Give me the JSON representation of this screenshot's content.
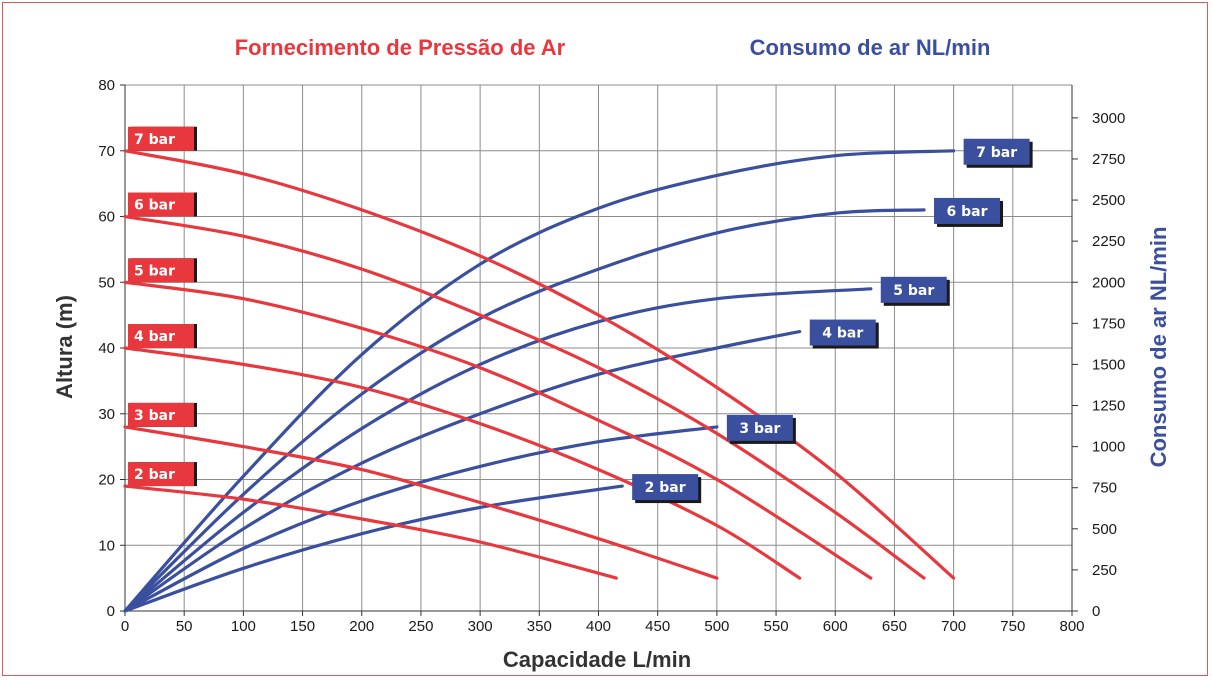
{
  "header": {
    "left_title": "Fornecimento de Pressão de Ar",
    "right_title": "Consumo de ar NL/min"
  },
  "colors": {
    "pressure": "#e8383d",
    "consumption": "#3a4f9e",
    "frame": "#e05a5a",
    "grid": "#8c8c8c"
  },
  "chart_data": {
    "type": "line",
    "xlabel": "Capacidade L/min",
    "ylabel": "Altura (m)",
    "y2label": "Consumo de ar NL/min",
    "xlim": [
      0,
      800
    ],
    "ylim": [
      0,
      80
    ],
    "y2lim": [
      0,
      3200
    ],
    "x_ticks": [
      0,
      50,
      100,
      150,
      200,
      250,
      300,
      350,
      400,
      450,
      500,
      550,
      600,
      650,
      700,
      750,
      800
    ],
    "y_ticks": [
      0,
      10,
      20,
      30,
      40,
      50,
      60,
      70,
      80
    ],
    "y2_ticks": [
      0,
      250,
      500,
      750,
      1000,
      1250,
      1500,
      1750,
      2000,
      2250,
      2500,
      2750,
      3000
    ],
    "grid": true,
    "pressure_series": [
      {
        "name": "7 bar",
        "x": [
          0,
          100,
          200,
          300,
          400,
          500,
          600,
          700
        ],
        "y": [
          70,
          66.5,
          61,
          54,
          45,
          34,
          21,
          5
        ]
      },
      {
        "name": "6 bar",
        "x": [
          0,
          100,
          200,
          300,
          400,
          500,
          600,
          675
        ],
        "y": [
          60,
          57,
          52,
          45,
          37,
          27,
          15,
          5
        ]
      },
      {
        "name": "5 bar",
        "x": [
          0,
          100,
          200,
          300,
          400,
          500,
          630
        ],
        "y": [
          50,
          47.5,
          43,
          37,
          29,
          20,
          5
        ]
      },
      {
        "name": "4 bar",
        "x": [
          0,
          100,
          200,
          300,
          400,
          500,
          570
        ],
        "y": [
          40,
          37.5,
          34,
          28.5,
          21.5,
          13,
          5
        ]
      },
      {
        "name": "3 bar",
        "x": [
          0,
          100,
          200,
          300,
          400,
          500
        ],
        "y": [
          28,
          25,
          21.5,
          16.5,
          11,
          5
        ]
      },
      {
        "name": "2 bar",
        "x": [
          0,
          100,
          200,
          300,
          415
        ],
        "y": [
          19,
          17,
          14,
          10.5,
          5
        ]
      }
    ],
    "consumption_series": [
      {
        "name": "7 bar",
        "x": [
          0,
          100,
          200,
          300,
          400,
          500,
          600,
          700
        ],
        "y": [
          0,
          820,
          1560,
          2110,
          2450,
          2650,
          2770,
          2800
        ]
      },
      {
        "name": "6 bar",
        "x": [
          0,
          100,
          200,
          300,
          400,
          500,
          600,
          675
        ],
        "y": [
          0,
          710,
          1320,
          1780,
          2080,
          2300,
          2420,
          2440
        ]
      },
      {
        "name": "5 bar",
        "x": [
          0,
          100,
          200,
          300,
          400,
          500,
          630
        ],
        "y": [
          0,
          600,
          1110,
          1500,
          1760,
          1900,
          1960
        ]
      },
      {
        "name": "4 bar",
        "x": [
          0,
          100,
          200,
          300,
          400,
          500,
          570
        ],
        "y": [
          0,
          500,
          900,
          1200,
          1440,
          1600,
          1700
        ]
      },
      {
        "name": "3 bar",
        "x": [
          0,
          100,
          200,
          300,
          400,
          500
        ],
        "y": [
          0,
          380,
          670,
          880,
          1030,
          1120
        ]
      },
      {
        "name": "2 bar",
        "x": [
          0,
          100,
          200,
          300,
          420
        ],
        "y": [
          0,
          260,
          470,
          630,
          760
        ]
      }
    ]
  }
}
